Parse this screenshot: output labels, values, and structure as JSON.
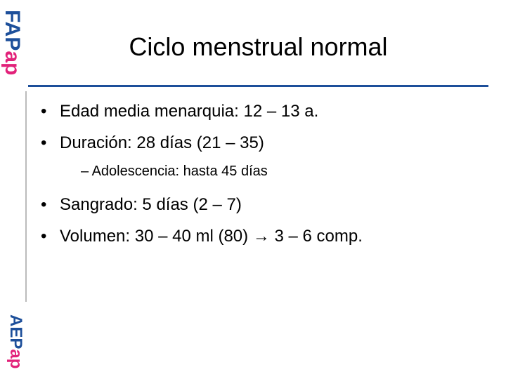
{
  "sidebar": {
    "logo_top": [
      "FAP",
      "ap"
    ],
    "logo_bottom": [
      "AEP",
      "ap"
    ]
  },
  "header": {
    "title": "Ciclo menstrual normal"
  },
  "bullets": [
    {
      "text": "Edad media menarquia: 12 – 13 a."
    },
    {
      "text": "Duración: 28 días (21 – 35)",
      "sub": [
        "Adolescencia: hasta 45 días"
      ]
    },
    {
      "text": "Sangrado: 5 días (2 – 7)"
    },
    {
      "text": "Volumen: 30 – 40 ml (80) → 3 – 6 comp."
    }
  ]
}
